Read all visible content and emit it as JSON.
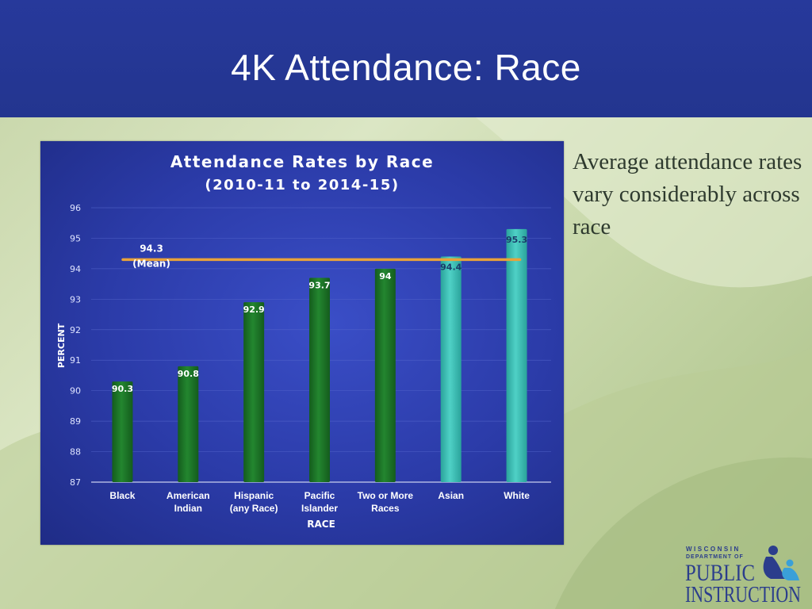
{
  "slide": {
    "title": "4K Attendance: Race",
    "side_text": "Average attendance rates vary considerably across race"
  },
  "logo": {
    "line1": "WISCONSIN",
    "line2": "DEPARTMENT OF",
    "line3": "PUBLIC",
    "line4": "INSTRUCTION"
  },
  "colors": {
    "header": "#27399b",
    "bar_green": "#1e7a2a",
    "bar_teal": "#3ec2b8",
    "mean_line": "#e8a23a"
  },
  "chart_data": {
    "type": "bar",
    "title": "Attendance Rates by Race",
    "subtitle": "(2010-11 to 2014-15)",
    "xlabel": "RACE",
    "ylabel": "PERCENT",
    "ylim": [
      87,
      96
    ],
    "yticks": [
      87,
      88,
      89,
      90,
      91,
      92,
      93,
      94,
      95,
      96
    ],
    "categories": [
      [
        "Black"
      ],
      [
        "American",
        "Indian"
      ],
      [
        "Hispanic",
        "(any Race)"
      ],
      [
        "Pacific",
        "Islander"
      ],
      [
        "Two or More",
        "Races"
      ],
      [
        "Asian"
      ],
      [
        "White"
      ]
    ],
    "values": [
      90.3,
      90.8,
      92.9,
      93.7,
      94,
      94.4,
      95.3
    ],
    "value_labels": [
      "90.3",
      "90.8",
      "92.9",
      "93.7",
      "94",
      "94.4",
      "95.3"
    ],
    "bar_color_groups": [
      "green",
      "green",
      "green",
      "green",
      "green",
      "teal",
      "teal"
    ],
    "mean": {
      "value": 94.3,
      "label": "94.3",
      "label2": "(Mean)"
    }
  }
}
